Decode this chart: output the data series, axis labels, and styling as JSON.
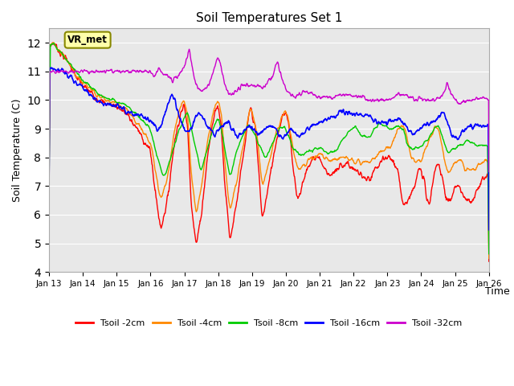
{
  "title": "Soil Temperatures Set 1",
  "xlabel": "Time",
  "ylabel": "Soil Temperature (C)",
  "ylim": [
    4.0,
    12.5
  ],
  "yticks": [
    4.0,
    5.0,
    6.0,
    7.0,
    8.0,
    9.0,
    10.0,
    11.0,
    12.0
  ],
  "xlim": [
    0,
    13
  ],
  "xtick_labels": [
    "Jan 13",
    "Jan 14",
    "Jan 15",
    "Jan 16",
    "Jan 17",
    "Jan 18",
    "Jan 19",
    "Jan 20",
    "Jan 21",
    "Jan 22",
    "Jan 23",
    "Jan 24",
    "Jan 25",
    "Jan 26"
  ],
  "xtick_positions": [
    0,
    1,
    2,
    3,
    4,
    5,
    6,
    7,
    8,
    9,
    10,
    11,
    12,
    13
  ],
  "colors": {
    "Tsoil -2cm": "#ff0000",
    "Tsoil -4cm": "#ff8800",
    "Tsoil -8cm": "#00cc00",
    "Tsoil -16cm": "#0000ff",
    "Tsoil -32cm": "#cc00cc"
  },
  "bg_color": "#e8e8e8",
  "annotation_text": "VR_met",
  "annotation_facecolor": "#ffffaa",
  "annotation_edgecolor": "#888800"
}
